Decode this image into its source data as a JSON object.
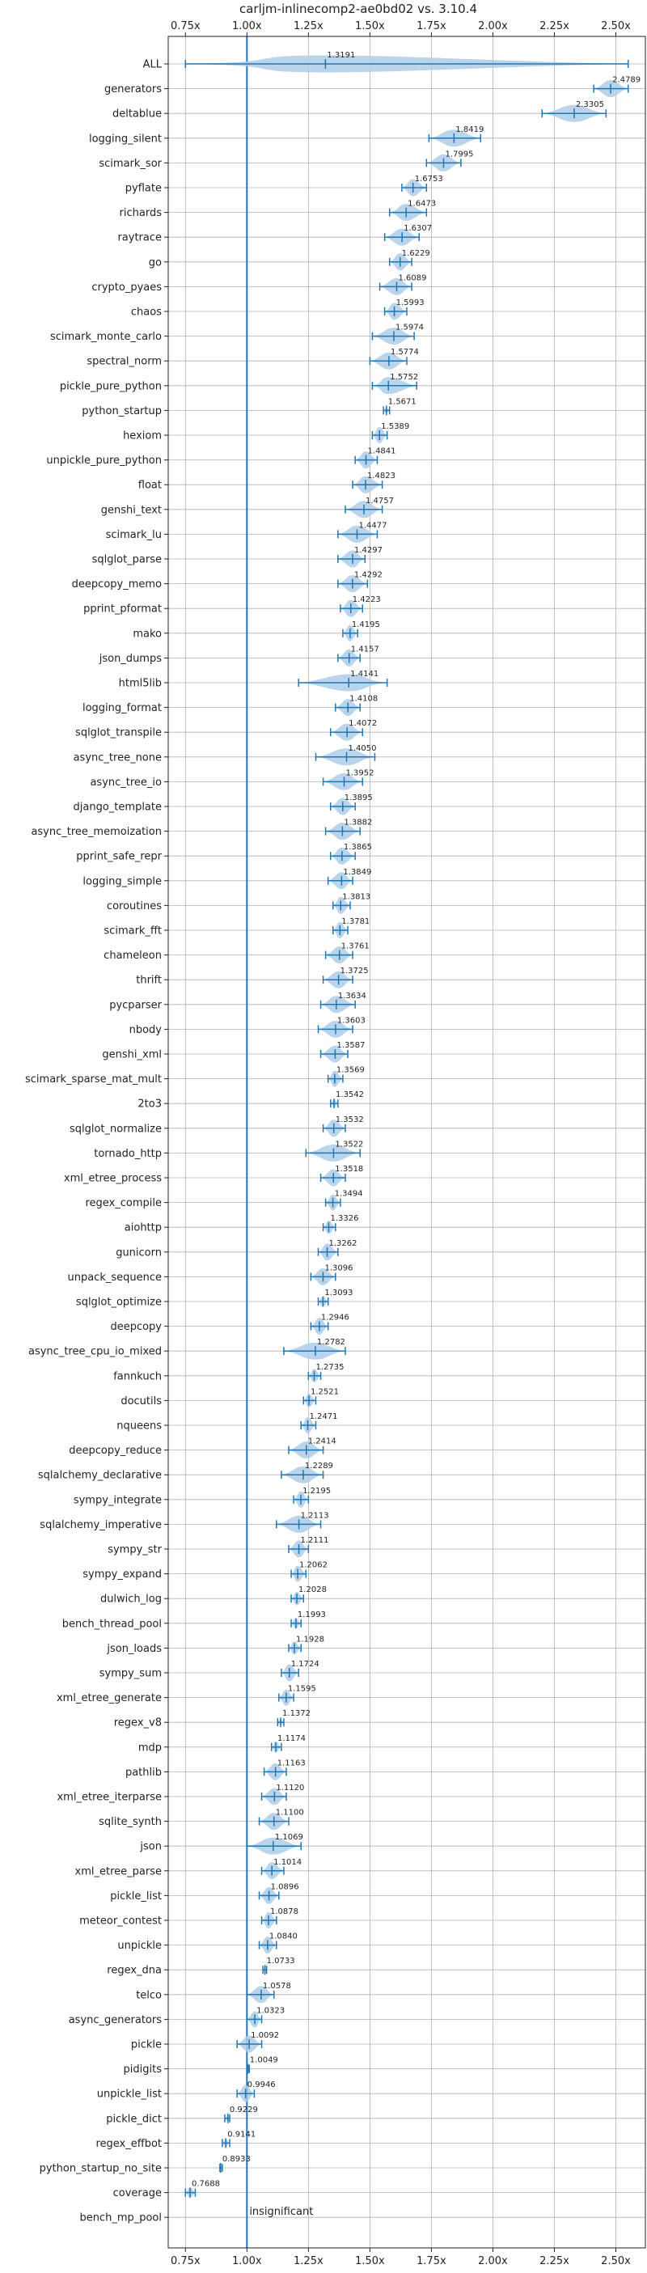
{
  "chart_data": {
    "type": "violin",
    "title": "carljm-inlinecomp2-ae0bd02 vs. 3.10.4",
    "xlim": [
      0.68,
      2.62
    ],
    "xticks": [
      {
        "value": 0.75,
        "label": "0.75x"
      },
      {
        "value": 1.0,
        "label": "1.00x"
      },
      {
        "value": 1.25,
        "label": "1.25x"
      },
      {
        "value": 1.5,
        "label": "1.50x"
      },
      {
        "value": 1.75,
        "label": "1.75x"
      },
      {
        "value": 2.0,
        "label": "2.00x"
      },
      {
        "value": 2.25,
        "label": "2.25x"
      },
      {
        "value": 2.5,
        "label": "2.50x"
      }
    ],
    "reference_line": 1.0,
    "grid": true,
    "color": "#1f77b4",
    "violin_color": "#aecde8",
    "insignificant_label": "insignificant",
    "rows": [
      {
        "name": "ALL",
        "value": 1.3191,
        "label": "1.3191",
        "min": 0.75,
        "max": 2.55
      },
      {
        "name": "generators",
        "value": 2.4789,
        "label": "2.4789",
        "min": 2.41,
        "max": 2.55
      },
      {
        "name": "deltablue",
        "value": 2.3305,
        "label": "2.3305",
        "min": 2.2,
        "max": 2.46
      },
      {
        "name": "logging_silent",
        "value": 1.8419,
        "label": "1.8419",
        "min": 1.74,
        "max": 1.95
      },
      {
        "name": "scimark_sor",
        "value": 1.7995,
        "label": "1.7995",
        "min": 1.73,
        "max": 1.87
      },
      {
        "name": "pyflate",
        "value": 1.6753,
        "label": "1.6753",
        "min": 1.63,
        "max": 1.73
      },
      {
        "name": "richards",
        "value": 1.6473,
        "label": "1.6473",
        "min": 1.58,
        "max": 1.73
      },
      {
        "name": "raytrace",
        "value": 1.6307,
        "label": "1.6307",
        "min": 1.56,
        "max": 1.7
      },
      {
        "name": "go",
        "value": 1.6229,
        "label": "1.6229",
        "min": 1.58,
        "max": 1.67
      },
      {
        "name": "crypto_pyaes",
        "value": 1.6089,
        "label": "1.6089",
        "min": 1.54,
        "max": 1.67
      },
      {
        "name": "chaos",
        "value": 1.5993,
        "label": "1.5993",
        "min": 1.56,
        "max": 1.65
      },
      {
        "name": "scimark_monte_carlo",
        "value": 1.5974,
        "label": "1.5974",
        "min": 1.51,
        "max": 1.68
      },
      {
        "name": "spectral_norm",
        "value": 1.5774,
        "label": "1.5774",
        "min": 1.5,
        "max": 1.65
      },
      {
        "name": "pickle_pure_python",
        "value": 1.5752,
        "label": "1.5752",
        "min": 1.51,
        "max": 1.69
      },
      {
        "name": "python_startup",
        "value": 1.5671,
        "label": "1.5671",
        "min": 1.555,
        "max": 1.58
      },
      {
        "name": "hexiom",
        "value": 1.5389,
        "label": "1.5389",
        "min": 1.51,
        "max": 1.57
      },
      {
        "name": "unpickle_pure_python",
        "value": 1.4841,
        "label": "1.4841",
        "min": 1.44,
        "max": 1.53
      },
      {
        "name": "float",
        "value": 1.4823,
        "label": "1.4823",
        "min": 1.43,
        "max": 1.55
      },
      {
        "name": "genshi_text",
        "value": 1.4757,
        "label": "1.4757",
        "min": 1.4,
        "max": 1.55
      },
      {
        "name": "scimark_lu",
        "value": 1.4477,
        "label": "1.4477",
        "min": 1.37,
        "max": 1.53
      },
      {
        "name": "sqlglot_parse",
        "value": 1.4297,
        "label": "1.4297",
        "min": 1.37,
        "max": 1.48
      },
      {
        "name": "deepcopy_memo",
        "value": 1.4292,
        "label": "1.4292",
        "min": 1.37,
        "max": 1.49
      },
      {
        "name": "pprint_pformat",
        "value": 1.4223,
        "label": "1.4223",
        "min": 1.38,
        "max": 1.47
      },
      {
        "name": "mako",
        "value": 1.4195,
        "label": "1.4195",
        "min": 1.39,
        "max": 1.45
      },
      {
        "name": "json_dumps",
        "value": 1.4157,
        "label": "1.4157",
        "min": 1.37,
        "max": 1.46
      },
      {
        "name": "html5lib",
        "value": 1.4141,
        "label": "1.4141",
        "min": 1.21,
        "max": 1.57
      },
      {
        "name": "logging_format",
        "value": 1.4108,
        "label": "1.4108",
        "min": 1.36,
        "max": 1.46
      },
      {
        "name": "sqlglot_transpile",
        "value": 1.4072,
        "label": "1.4072",
        "min": 1.34,
        "max": 1.47
      },
      {
        "name": "async_tree_none",
        "value": 1.405,
        "label": "1.4050",
        "min": 1.28,
        "max": 1.52
      },
      {
        "name": "async_tree_io",
        "value": 1.3952,
        "label": "1.3952",
        "min": 1.31,
        "max": 1.47
      },
      {
        "name": "django_template",
        "value": 1.3895,
        "label": "1.3895",
        "min": 1.34,
        "max": 1.44
      },
      {
        "name": "async_tree_memoization",
        "value": 1.3882,
        "label": "1.3882",
        "min": 1.32,
        "max": 1.46
      },
      {
        "name": "pprint_safe_repr",
        "value": 1.3865,
        "label": "1.3865",
        "min": 1.34,
        "max": 1.44
      },
      {
        "name": "logging_simple",
        "value": 1.3849,
        "label": "1.3849",
        "min": 1.33,
        "max": 1.43
      },
      {
        "name": "coroutines",
        "value": 1.3813,
        "label": "1.3813",
        "min": 1.35,
        "max": 1.42
      },
      {
        "name": "scimark_fft",
        "value": 1.3781,
        "label": "1.3781",
        "min": 1.35,
        "max": 1.41
      },
      {
        "name": "chameleon",
        "value": 1.3761,
        "label": "1.3761",
        "min": 1.32,
        "max": 1.43
      },
      {
        "name": "thrift",
        "value": 1.3725,
        "label": "1.3725",
        "min": 1.31,
        "max": 1.43
      },
      {
        "name": "pycparser",
        "value": 1.3634,
        "label": "1.3634",
        "min": 1.3,
        "max": 1.44
      },
      {
        "name": "nbody",
        "value": 1.3603,
        "label": "1.3603",
        "min": 1.29,
        "max": 1.43
      },
      {
        "name": "genshi_xml",
        "value": 1.3587,
        "label": "1.3587",
        "min": 1.3,
        "max": 1.41
      },
      {
        "name": "scimark_sparse_mat_mult",
        "value": 1.3569,
        "label": "1.3569",
        "min": 1.33,
        "max": 1.39
      },
      {
        "name": "2to3",
        "value": 1.3542,
        "label": "1.3542",
        "min": 1.34,
        "max": 1.37
      },
      {
        "name": "sqlglot_normalize",
        "value": 1.3532,
        "label": "1.3532",
        "min": 1.31,
        "max": 1.4
      },
      {
        "name": "tornado_http",
        "value": 1.3522,
        "label": "1.3522",
        "min": 1.24,
        "max": 1.46
      },
      {
        "name": "xml_etree_process",
        "value": 1.3518,
        "label": "1.3518",
        "min": 1.3,
        "max": 1.4
      },
      {
        "name": "regex_compile",
        "value": 1.3494,
        "label": "1.3494",
        "min": 1.32,
        "max": 1.38
      },
      {
        "name": "aiohttp",
        "value": 1.3326,
        "label": "1.3326",
        "min": 1.31,
        "max": 1.36
      },
      {
        "name": "gunicorn",
        "value": 1.3262,
        "label": "1.3262",
        "min": 1.29,
        "max": 1.37
      },
      {
        "name": "unpack_sequence",
        "value": 1.3096,
        "label": "1.3096",
        "min": 1.26,
        "max": 1.36
      },
      {
        "name": "sqlglot_optimize",
        "value": 1.3093,
        "label": "1.3093",
        "min": 1.29,
        "max": 1.33
      },
      {
        "name": "deepcopy",
        "value": 1.2946,
        "label": "1.2946",
        "min": 1.26,
        "max": 1.33
      },
      {
        "name": "async_tree_cpu_io_mixed",
        "value": 1.2782,
        "label": "1.2782",
        "min": 1.15,
        "max": 1.4
      },
      {
        "name": "fannkuch",
        "value": 1.2735,
        "label": "1.2735",
        "min": 1.25,
        "max": 1.3
      },
      {
        "name": "docutils",
        "value": 1.2521,
        "label": "1.2521",
        "min": 1.23,
        "max": 1.28
      },
      {
        "name": "nqueens",
        "value": 1.2471,
        "label": "1.2471",
        "min": 1.22,
        "max": 1.28
      },
      {
        "name": "deepcopy_reduce",
        "value": 1.2414,
        "label": "1.2414",
        "min": 1.17,
        "max": 1.31
      },
      {
        "name": "sqlalchemy_declarative",
        "value": 1.2289,
        "label": "1.2289",
        "min": 1.14,
        "max": 1.31
      },
      {
        "name": "sympy_integrate",
        "value": 1.2195,
        "label": "1.2195",
        "min": 1.19,
        "max": 1.25
      },
      {
        "name": "sqlalchemy_imperative",
        "value": 1.2113,
        "label": "1.2113",
        "min": 1.12,
        "max": 1.3
      },
      {
        "name": "sympy_str",
        "value": 1.2111,
        "label": "1.2111",
        "min": 1.17,
        "max": 1.25
      },
      {
        "name": "sympy_expand",
        "value": 1.2062,
        "label": "1.2062",
        "min": 1.18,
        "max": 1.24
      },
      {
        "name": "dulwich_log",
        "value": 1.2028,
        "label": "1.2028",
        "min": 1.18,
        "max": 1.23
      },
      {
        "name": "bench_thread_pool",
        "value": 1.1993,
        "label": "1.1993",
        "min": 1.18,
        "max": 1.22
      },
      {
        "name": "json_loads",
        "value": 1.1928,
        "label": "1.1928",
        "min": 1.17,
        "max": 1.22
      },
      {
        "name": "sympy_sum",
        "value": 1.1724,
        "label": "1.1724",
        "min": 1.14,
        "max": 1.21
      },
      {
        "name": "xml_etree_generate",
        "value": 1.1595,
        "label": "1.1595",
        "min": 1.13,
        "max": 1.19
      },
      {
        "name": "regex_v8",
        "value": 1.1372,
        "label": "1.1372",
        "min": 1.125,
        "max": 1.15
      },
      {
        "name": "mdp",
        "value": 1.1174,
        "label": "1.1174",
        "min": 1.1,
        "max": 1.14
      },
      {
        "name": "pathlib",
        "value": 1.1163,
        "label": "1.1163",
        "min": 1.07,
        "max": 1.16
      },
      {
        "name": "xml_etree_iterparse",
        "value": 1.112,
        "label": "1.1120",
        "min": 1.06,
        "max": 1.16
      },
      {
        "name": "sqlite_synth",
        "value": 1.11,
        "label": "1.1100",
        "min": 1.05,
        "max": 1.17
      },
      {
        "name": "json",
        "value": 1.1069,
        "label": "1.1069",
        "min": 1.0,
        "max": 1.22
      },
      {
        "name": "xml_etree_parse",
        "value": 1.1014,
        "label": "1.1014",
        "min": 1.06,
        "max": 1.15
      },
      {
        "name": "pickle_list",
        "value": 1.0896,
        "label": "1.0896",
        "min": 1.05,
        "max": 1.13
      },
      {
        "name": "meteor_contest",
        "value": 1.0878,
        "label": "1.0878",
        "min": 1.06,
        "max": 1.12
      },
      {
        "name": "unpickle",
        "value": 1.084,
        "label": "1.0840",
        "min": 1.05,
        "max": 1.12
      },
      {
        "name": "regex_dna",
        "value": 1.0733,
        "label": "1.0733",
        "min": 1.065,
        "max": 1.08
      },
      {
        "name": "telco",
        "value": 1.0578,
        "label": "1.0578",
        "min": 1.0,
        "max": 1.11
      },
      {
        "name": "async_generators",
        "value": 1.0323,
        "label": "1.0323",
        "min": 1.0,
        "max": 1.06
      },
      {
        "name": "pickle",
        "value": 1.0092,
        "label": "1.0092",
        "min": 0.96,
        "max": 1.06
      },
      {
        "name": "pidigits",
        "value": 1.0049,
        "label": "1.0049",
        "min": 1.0,
        "max": 1.01
      },
      {
        "name": "unpickle_list",
        "value": 0.9946,
        "label": "0.9946",
        "min": 0.96,
        "max": 1.03
      },
      {
        "name": "pickle_dict",
        "value": 0.9229,
        "label": "0.9229",
        "min": 0.91,
        "max": 0.93
      },
      {
        "name": "regex_effbot",
        "value": 0.9141,
        "label": "0.9141",
        "min": 0.9,
        "max": 0.93
      },
      {
        "name": "python_startup_no_site",
        "value": 0.8933,
        "label": "0.8933",
        "min": 0.89,
        "max": 0.9
      },
      {
        "name": "coverage",
        "value": 0.7688,
        "label": "0.7688",
        "min": 0.75,
        "max": 0.79
      },
      {
        "name": "bench_mp_pool",
        "value": 1.0,
        "label": "",
        "min": 1.0,
        "max": 1.0,
        "insignificant": true
      }
    ]
  }
}
